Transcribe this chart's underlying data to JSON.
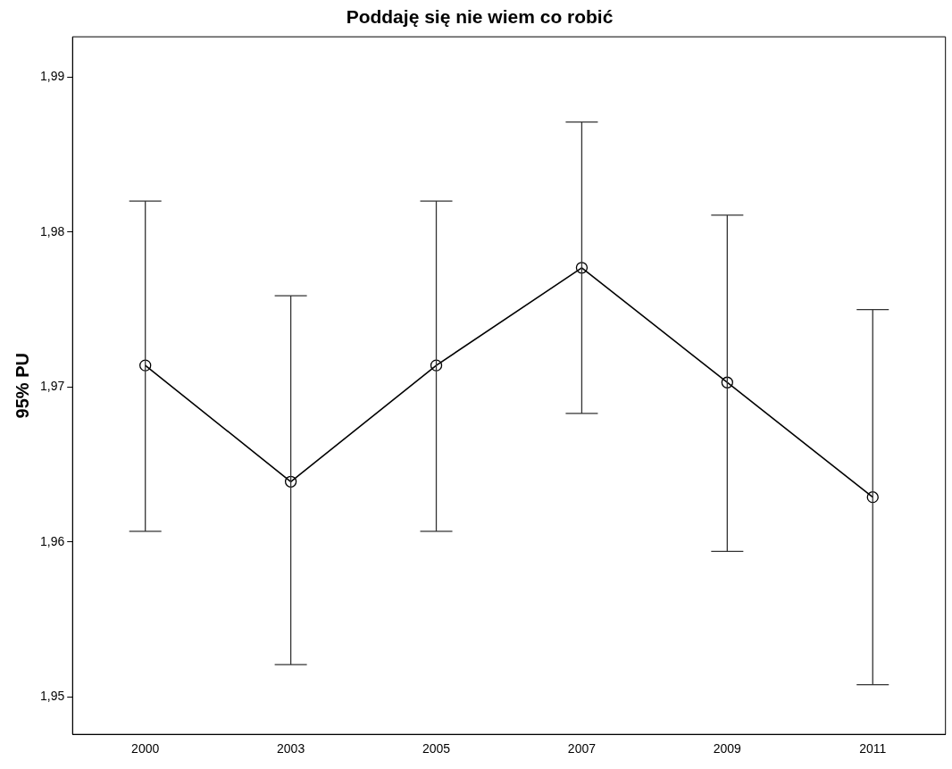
{
  "chart_data": {
    "type": "line",
    "title": "Poddaję się nie wiem co robić",
    "ylabel": "95% PU",
    "categories": [
      "2000",
      "2003",
      "2005",
      "2007",
      "2009",
      "2011"
    ],
    "values": [
      1.9714,
      1.9639,
      1.9714,
      1.9777,
      1.9703,
      1.9629
    ],
    "errors": [
      [
        1.9607,
        1.982
      ],
      [
        1.9521,
        1.9759
      ],
      [
        1.9607,
        1.982
      ],
      [
        1.9683,
        1.9871
      ],
      [
        1.9594,
        1.9811
      ],
      [
        1.9508,
        1.975
      ]
    ],
    "color": "#000000",
    "marker": "circle",
    "line_style": "solid",
    "grid": false,
    "legend": false,
    "ylim": [
      1.9476,
      1.9926
    ],
    "yticks": [
      {
        "value": 1.95,
        "label": "1,95"
      },
      {
        "value": 1.96,
        "label": "1,96"
      },
      {
        "value": 1.97,
        "label": "1,97"
      },
      {
        "value": 1.98,
        "label": "1,98"
      },
      {
        "value": 1.99,
        "label": "1,99"
      }
    ]
  }
}
